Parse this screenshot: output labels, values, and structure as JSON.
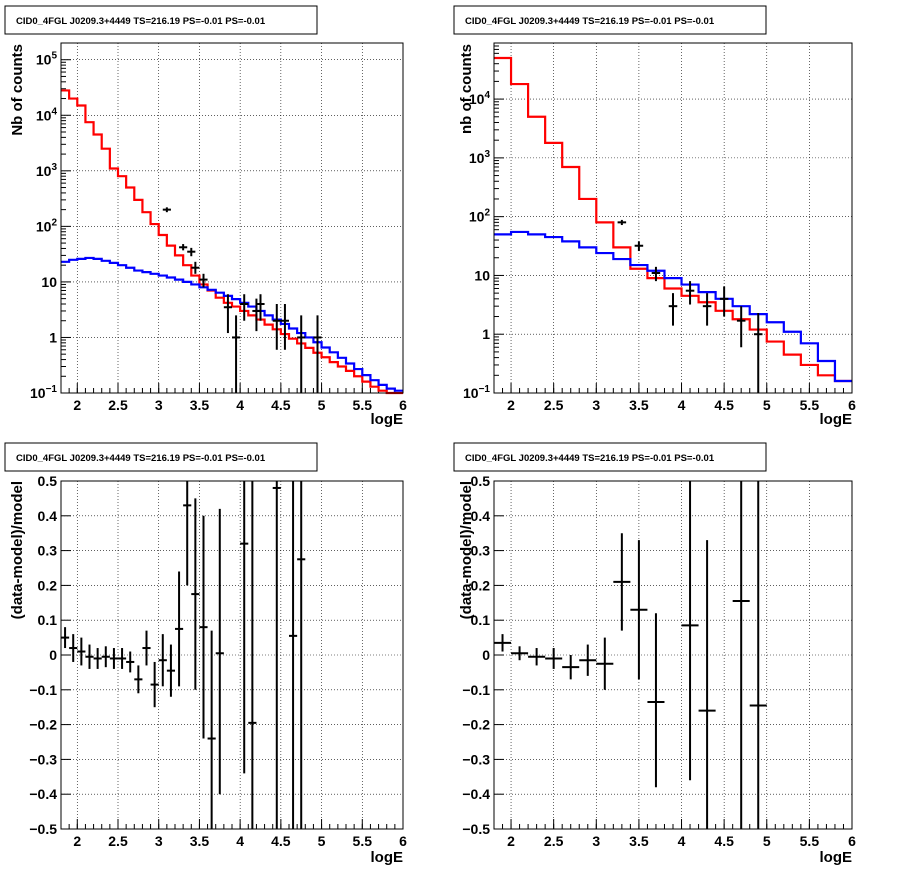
{
  "panels": [
    {
      "title": "CID0_4FGL J0209.3+4449 TS=216.19 PS=-0.01 PS=-0.01",
      "xlabel": "logE",
      "ylabel": "Nb of counts"
    },
    {
      "title": "CID0_4FGL J0209.3+4449 TS=216.19 PS=-0.01 PS=-0.01",
      "xlabel": "logE",
      "ylabel": "nb of counts"
    },
    {
      "title": "CID0_4FGL J0209.3+4449 TS=216.19 PS=-0.01 PS=-0.01",
      "xlabel": "logE",
      "ylabel": "(data-model)/model"
    },
    {
      "title": "CID0_4FGL J0209.3+4449 TS=216.19 PS=-0.01 PS=-0.01",
      "xlabel": "logE",
      "ylabel": "(data-model)/model"
    }
  ],
  "chart_data": [
    {
      "type": "line",
      "title": "CID0_4FGL J0209.3+4449 TS=216.19 PS=-0.01 PS=-0.01",
      "xlabel": "logE",
      "ylabel": "Nb of counts",
      "xlim": [
        1.8,
        6.0
      ],
      "ylim": [
        0.1,
        200000
      ],
      "yscale": "log",
      "grid": true,
      "xticks": [
        "2",
        "2.5",
        "3",
        "3.5",
        "4",
        "4.5",
        "5",
        "5.5",
        "6"
      ],
      "yticks": [
        {
          "v": 0.1,
          "base": "10",
          "exp": "−1"
        },
        {
          "v": 1,
          "label": "1"
        },
        {
          "v": 10,
          "label": "10"
        },
        {
          "v": 100,
          "base": "10",
          "exp": "2"
        },
        {
          "v": 1000,
          "base": "10",
          "exp": "3"
        },
        {
          "v": 10000,
          "base": "10",
          "exp": "4"
        },
        {
          "v": 100000,
          "base": "10",
          "exp": "5"
        }
      ],
      "series": [
        {
          "color": "#ff0000",
          "style": "step",
          "edges": [
            1.8,
            1.9,
            2.0,
            2.1,
            2.2,
            2.3,
            2.4,
            2.5,
            2.6,
            2.7,
            2.8,
            2.9,
            3.0,
            3.1,
            3.2,
            3.3,
            3.4,
            3.5,
            3.6,
            3.7,
            3.8,
            3.9,
            4.0,
            4.1,
            4.2,
            4.3,
            4.4,
            4.5,
            4.6,
            4.7,
            4.8,
            4.9,
            5.0,
            5.1,
            5.2,
            5.3,
            5.4,
            5.5,
            5.6,
            5.7,
            5.8,
            5.9,
            6.0
          ],
          "values": [
            28000,
            20000,
            15000,
            7500,
            4500,
            2500,
            1100,
            800,
            500,
            300,
            180,
            110,
            70,
            45,
            30,
            20,
            13,
            9,
            7,
            5.2,
            4.2,
            3.6,
            3.0,
            2.5,
            2.1,
            1.7,
            1.4,
            1.15,
            0.95,
            0.78,
            0.65,
            0.53,
            0.44,
            0.36,
            0.3,
            0.25,
            0.2,
            0.16,
            0.13,
            0.11,
            0.1,
            0.1
          ]
        },
        {
          "color": "#0000ff",
          "style": "step",
          "edges": [
            1.8,
            1.9,
            2.0,
            2.1,
            2.2,
            2.3,
            2.4,
            2.5,
            2.6,
            2.7,
            2.8,
            2.9,
            3.0,
            3.1,
            3.2,
            3.3,
            3.4,
            3.5,
            3.6,
            3.7,
            3.8,
            3.9,
            4.0,
            4.1,
            4.2,
            4.3,
            4.4,
            4.5,
            4.6,
            4.7,
            4.8,
            4.9,
            5.0,
            5.1,
            5.2,
            5.3,
            5.4,
            5.5,
            5.6,
            5.7,
            5.8,
            5.9,
            6.0
          ],
          "values": [
            23,
            25,
            26,
            27,
            26,
            24,
            22,
            20,
            18,
            16,
            15,
            14,
            13,
            12,
            11,
            10,
            9,
            8,
            7.2,
            6.4,
            5.6,
            4.9,
            4.2,
            3.6,
            3.0,
            2.5,
            2.1,
            1.75,
            1.45,
            1.2,
            1.0,
            0.82,
            0.66,
            0.54,
            0.43,
            0.34,
            0.27,
            0.21,
            0.17,
            0.14,
            0.12,
            0.11
          ]
        }
      ],
      "points": [
        {
          "x": 3.1,
          "y": 200,
          "lo": 180,
          "hi": 220
        },
        {
          "x": 3.3,
          "y": 42,
          "lo": 37,
          "hi": 48
        },
        {
          "x": 3.4,
          "y": 35,
          "lo": 29,
          "hi": 41
        },
        {
          "x": 3.45,
          "y": 18,
          "lo": 14,
          "hi": 23
        },
        {
          "x": 3.55,
          "y": 11,
          "lo": 8,
          "hi": 14
        },
        {
          "x": 3.85,
          "y": 3.5,
          "lo": 1.2,
          "hi": 6
        },
        {
          "x": 3.95,
          "y": 1,
          "lo": 0.1,
          "hi": 2.5
        },
        {
          "x": 4.05,
          "y": 4,
          "lo": 2,
          "hi": 6
        },
        {
          "x": 4.2,
          "y": 3,
          "lo": 1.3,
          "hi": 5
        },
        {
          "x": 4.25,
          "y": 4,
          "lo": 2,
          "hi": 6
        },
        {
          "x": 4.45,
          "y": 2,
          "lo": 0.6,
          "hi": 4
        },
        {
          "x": 4.55,
          "y": 2,
          "lo": 0.6,
          "hi": 4
        },
        {
          "x": 4.75,
          "y": 1,
          "lo": 0.1,
          "hi": 2.5
        },
        {
          "x": 4.95,
          "y": 1,
          "lo": 0.1,
          "hi": 2.5
        }
      ]
    },
    {
      "type": "line",
      "title": "CID0_4FGL J0209.3+4449 TS=216.19 PS=-0.01 PS=-0.01",
      "xlabel": "logE",
      "ylabel": "nb of counts",
      "xlim": [
        1.8,
        6.0
      ],
      "ylim": [
        0.1,
        90000
      ],
      "yscale": "log",
      "grid": true,
      "xticks": [
        "2",
        "2.5",
        "3",
        "3.5",
        "4",
        "4.5",
        "5",
        "5.5",
        "6"
      ],
      "yticks": [
        {
          "v": 0.1,
          "base": "10",
          "exp": "−1"
        },
        {
          "v": 1,
          "label": "1"
        },
        {
          "v": 10,
          "label": "10"
        },
        {
          "v": 100,
          "base": "10",
          "exp": "2"
        },
        {
          "v": 1000,
          "base": "10",
          "exp": "3"
        },
        {
          "v": 10000,
          "base": "10",
          "exp": "4"
        }
      ],
      "series": [
        {
          "color": "#ff0000",
          "style": "step",
          "edges": [
            1.8,
            2.0,
            2.2,
            2.4,
            2.6,
            2.8,
            3.0,
            3.2,
            3.4,
            3.6,
            3.8,
            4.0,
            4.2,
            4.4,
            4.6,
            4.8,
            5.0,
            5.2,
            5.4,
            5.6,
            5.8,
            6.0
          ],
          "values": [
            50000,
            18000,
            5000,
            1800,
            700,
            200,
            80,
            30,
            13,
            9,
            6,
            4.5,
            3.5,
            2.5,
            1.8,
            1.2,
            0.75,
            0.45,
            0.3,
            0.2,
            0.16
          ]
        },
        {
          "color": "#0000ff",
          "style": "step",
          "edges": [
            1.8,
            2.0,
            2.2,
            2.4,
            2.6,
            2.8,
            3.0,
            3.2,
            3.4,
            3.6,
            3.8,
            4.0,
            4.2,
            4.4,
            4.6,
            4.8,
            5.0,
            5.2,
            5.4,
            5.6,
            5.8,
            6.0
          ],
          "values": [
            50,
            55,
            50,
            45,
            38,
            30,
            24,
            19,
            15,
            12,
            9,
            7,
            5.2,
            4.0,
            3.0,
            2.2,
            1.6,
            1.1,
            0.7,
            0.35,
            0.16
          ]
        }
      ],
      "points": [
        {
          "x": 3.3,
          "y": 80,
          "lo": 72,
          "hi": 88
        },
        {
          "x": 3.5,
          "y": 32,
          "lo": 26,
          "hi": 38
        },
        {
          "x": 3.7,
          "y": 11,
          "lo": 8,
          "hi": 14
        },
        {
          "x": 3.9,
          "y": 3,
          "lo": 1.4,
          "hi": 5
        },
        {
          "x": 4.1,
          "y": 5.5,
          "lo": 3.2,
          "hi": 8
        },
        {
          "x": 4.3,
          "y": 3,
          "lo": 1.4,
          "hi": 5
        },
        {
          "x": 4.5,
          "y": 4,
          "lo": 2,
          "hi": 6.5
        },
        {
          "x": 4.7,
          "y": 1.7,
          "lo": 0.6,
          "hi": 3
        },
        {
          "x": 4.9,
          "y": 1,
          "lo": 0.1,
          "hi": 2.3
        }
      ]
    },
    {
      "type": "scatter",
      "title": "CID0_4FGL J0209.3+4449 TS=216.19 PS=-0.01 PS=-0.01",
      "xlabel": "logE",
      "ylabel": "(data-model)/model",
      "xlim": [
        1.8,
        6.0
      ],
      "ylim": [
        -0.5,
        0.5
      ],
      "grid": true,
      "xticks": [
        "2",
        "2.5",
        "3",
        "3.5",
        "4",
        "4.5",
        "5",
        "5.5",
        "6"
      ],
      "yticks": [
        "−0.5",
        "−0.4",
        "−0.3",
        "−0.2",
        "−0.1",
        "0",
        "0.1",
        "0.2",
        "0.3",
        "0.4",
        "0.5"
      ],
      "xerr": 0.05,
      "points": [
        {
          "x": 1.85,
          "y": 0.05,
          "lo": 0.02,
          "hi": 0.08
        },
        {
          "x": 1.95,
          "y": 0.02,
          "lo": -0.02,
          "hi": 0.06
        },
        {
          "x": 2.05,
          "y": 0.01,
          "lo": -0.03,
          "hi": 0.05
        },
        {
          "x": 2.15,
          "y": -0.005,
          "lo": -0.04,
          "hi": 0.03
        },
        {
          "x": 2.25,
          "y": -0.01,
          "lo": -0.04,
          "hi": 0.02
        },
        {
          "x": 2.35,
          "y": -0.005,
          "lo": -0.035,
          "hi": 0.025
        },
        {
          "x": 2.45,
          "y": -0.01,
          "lo": -0.04,
          "hi": 0.02
        },
        {
          "x": 2.55,
          "y": -0.01,
          "lo": -0.04,
          "hi": 0.02
        },
        {
          "x": 2.65,
          "y": -0.02,
          "lo": -0.05,
          "hi": 0.01
        },
        {
          "x": 2.75,
          "y": -0.07,
          "lo": -0.11,
          "hi": -0.03
        },
        {
          "x": 2.85,
          "y": 0.02,
          "lo": -0.03,
          "hi": 0.07
        },
        {
          "x": 2.95,
          "y": -0.085,
          "lo": -0.15,
          "hi": -0.02
        },
        {
          "x": 3.05,
          "y": -0.015,
          "lo": -0.09,
          "hi": 0.06
        },
        {
          "x": 3.15,
          "y": -0.045,
          "lo": -0.12,
          "hi": 0.03
        },
        {
          "x": 3.25,
          "y": 0.075,
          "lo": -0.09,
          "hi": 0.24
        },
        {
          "x": 3.35,
          "y": 0.43,
          "lo": 0.2,
          "hi": 0.5
        },
        {
          "x": 3.45,
          "y": 0.175,
          "lo": -0.1,
          "hi": 0.45
        },
        {
          "x": 3.55,
          "y": 0.08,
          "lo": -0.24,
          "hi": 0.4
        },
        {
          "x": 3.65,
          "y": -0.24,
          "lo": -0.5,
          "hi": 0.07
        },
        {
          "x": 3.75,
          "y": 0.005,
          "lo": -0.4,
          "hi": 0.42
        },
        {
          "x": 4.05,
          "y": 0.32,
          "lo": -0.34,
          "hi": 0.5
        },
        {
          "x": 4.15,
          "y": -0.195,
          "lo": -0.5,
          "hi": 0.5
        },
        {
          "x": 4.45,
          "y": 0.48,
          "lo": -0.5,
          "hi": 0.5
        },
        {
          "x": 4.65,
          "y": 0.055,
          "lo": -0.5,
          "hi": 0.5
        },
        {
          "x": 4.75,
          "y": 0.275,
          "lo": -0.5,
          "hi": 0.5
        }
      ]
    },
    {
      "type": "scatter",
      "title": "CID0_4FGL J0209.3+4449 TS=216.19 PS=-0.01 PS=-0.01",
      "xlabel": "logE",
      "ylabel": "(data-model)/model",
      "xlim": [
        1.8,
        6.0
      ],
      "ylim": [
        -0.5,
        0.5
      ],
      "grid": true,
      "xticks": [
        "2",
        "2.5",
        "3",
        "3.5",
        "4",
        "4.5",
        "5",
        "5.5",
        "6"
      ],
      "yticks": [
        "−0.5",
        "−0.4",
        "−0.3",
        "−0.2",
        "−0.1",
        "0",
        "0.1",
        "0.2",
        "0.3",
        "0.4",
        "0.5"
      ],
      "xerr": 0.1,
      "points": [
        {
          "x": 1.9,
          "y": 0.035,
          "lo": 0.01,
          "hi": 0.06
        },
        {
          "x": 2.1,
          "y": 0.005,
          "lo": -0.015,
          "hi": 0.025
        },
        {
          "x": 2.3,
          "y": -0.005,
          "lo": -0.03,
          "hi": 0.02
        },
        {
          "x": 2.5,
          "y": -0.01,
          "lo": -0.04,
          "hi": 0.02
        },
        {
          "x": 2.7,
          "y": -0.035,
          "lo": -0.07,
          "hi": 0.0
        },
        {
          "x": 2.9,
          "y": -0.015,
          "lo": -0.06,
          "hi": 0.03
        },
        {
          "x": 3.1,
          "y": -0.025,
          "lo": -0.1,
          "hi": 0.05
        },
        {
          "x": 3.3,
          "y": 0.21,
          "lo": 0.07,
          "hi": 0.35
        },
        {
          "x": 3.5,
          "y": 0.13,
          "lo": -0.07,
          "hi": 0.33
        },
        {
          "x": 3.7,
          "y": -0.135,
          "lo": -0.38,
          "hi": 0.12
        },
        {
          "x": 4.1,
          "y": 0.085,
          "lo": -0.36,
          "hi": 0.5
        },
        {
          "x": 4.3,
          "y": -0.16,
          "lo": -0.5,
          "hi": 0.33
        },
        {
          "x": 4.7,
          "y": 0.155,
          "lo": -0.5,
          "hi": 0.5
        },
        {
          "x": 4.9,
          "y": -0.145,
          "lo": -0.5,
          "hi": 0.5
        }
      ]
    }
  ]
}
